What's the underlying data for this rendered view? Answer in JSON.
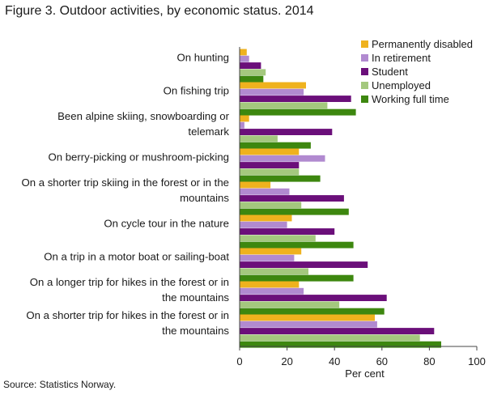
{
  "colors": {
    "permanently_disabled": "#efb21e",
    "in_retirement": "#b18ad0",
    "student": "#6b0f7a",
    "unemployed": "#a4c87e",
    "working_full_time": "#3d870f",
    "axis": "#444444"
  },
  "chart_data": {
    "type": "bar",
    "orientation": "horizontal",
    "title": "Figure 3. Outdoor activities, by economic status. 2014",
    "xlabel": "Per cent",
    "ylabel": "",
    "xlim": [
      0,
      100
    ],
    "xticks": [
      0,
      20,
      40,
      60,
      80,
      100
    ],
    "legend_position": "top-right",
    "categories": [
      [
        "On hunting"
      ],
      [
        "On fishing trip"
      ],
      [
        "Been alpine skiing, snowboarding or",
        "telemark"
      ],
      [
        "On berry-picking or mushroom-picking"
      ],
      [
        "On a shorter trip skiing in the forest or in the",
        "mountains"
      ],
      [
        "On cycle tour in the nature"
      ],
      [
        "On a trip in a motor boat or sailing-boat"
      ],
      [
        "On a longer trip for hikes in the forest or in",
        "the mountains"
      ],
      [
        "On a shorter trip for hikes in the forest or in",
        "the mountains"
      ]
    ],
    "series": [
      {
        "name": "Permanently disabled",
        "color_key": "permanently_disabled",
        "values": [
          3,
          28,
          4,
          25,
          13,
          22,
          26,
          25,
          57
        ]
      },
      {
        "name": "In retirement",
        "color_key": "in_retirement",
        "values": [
          4,
          27,
          2,
          36,
          21,
          20,
          23,
          27,
          58
        ]
      },
      {
        "name": "Student",
        "color_key": "student",
        "values": [
          9,
          47,
          39,
          25,
          44,
          40,
          54,
          62,
          82
        ]
      },
      {
        "name": "Unemployed",
        "color_key": "unemployed",
        "values": [
          11,
          37,
          16,
          25,
          26,
          32,
          29,
          42,
          76
        ]
      },
      {
        "name": "Working full time",
        "color_key": "working_full_time",
        "values": [
          10,
          49,
          30,
          34,
          46,
          48,
          48,
          61,
          85
        ]
      }
    ]
  },
  "source": "Source: Statistics Norway."
}
